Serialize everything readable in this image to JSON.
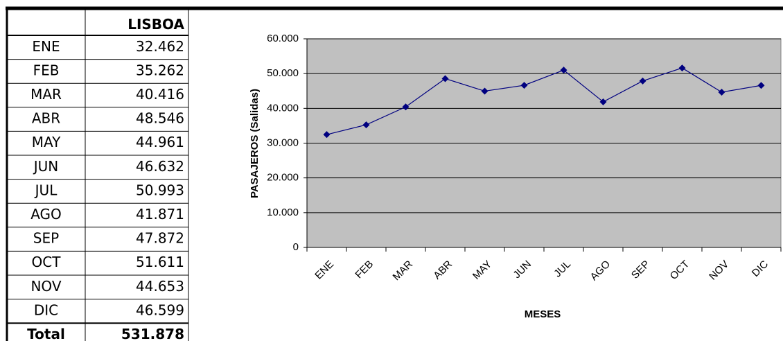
{
  "table": {
    "header": "LISBOA",
    "rows": [
      [
        "ENE",
        "32.462"
      ],
      [
        "FEB",
        "35.262"
      ],
      [
        "MAR",
        "40.416"
      ],
      [
        "ABR",
        "48.546"
      ],
      [
        "MAY",
        "44.961"
      ],
      [
        "JUN",
        "46.632"
      ],
      [
        "JUL",
        "50.993"
      ],
      [
        "AGO",
        "41.871"
      ],
      [
        "SEP",
        "47.872"
      ],
      [
        "OCT",
        "51.611"
      ],
      [
        "NOV",
        "44.653"
      ],
      [
        "DIC",
        "46.599"
      ]
    ],
    "total": [
      "Total",
      "531.878"
    ]
  },
  "chart_data": {
    "type": "line",
    "y_label": "PASAJEROS (Salidas)",
    "x_label": "MESES",
    "categories": [
      "ENE",
      "FEB",
      "MAR",
      "ABR",
      "MAY",
      "JUN",
      "JUL",
      "AGO",
      "SEP",
      "OCT",
      "NOV",
      "DIC"
    ],
    "values": [
      32462,
      35262,
      40416,
      48546,
      44961,
      46632,
      50993,
      41871,
      47872,
      51611,
      44653,
      46599
    ],
    "color": "#000080",
    "plot_color": "#c0c0c0",
    "ylim": [
      0,
      60000
    ],
    "yticks": [
      0,
      {
        "value": 10000,
        "label": "10.000"
      },
      {
        "value": 20000,
        "label": "20.000"
      },
      {
        "value": 30000,
        "label": "30.000"
      },
      {
        "value": 40000,
        "label": "40.000"
      },
      {
        "value": 50000,
        "label": "50.000"
      },
      {
        "value": 60000,
        "label": "60.000"
      }
    ],
    "grid": true
  }
}
